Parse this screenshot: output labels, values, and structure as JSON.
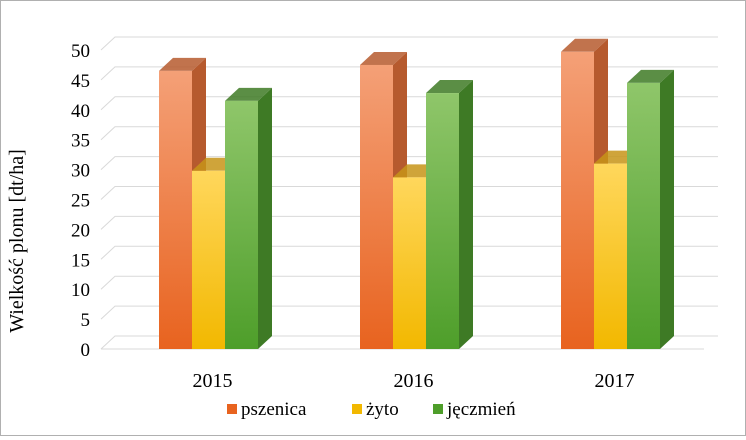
{
  "chart_data": {
    "type": "bar",
    "style": "3d-clustered-column",
    "categories": [
      "2015",
      "2016",
      "2017"
    ],
    "series": [
      {
        "name": "pszenica",
        "values": [
          46.5,
          47.5,
          49.7
        ],
        "color_top": "#F4A077",
        "color_bottom": "#E8631F",
        "color_side": "#B65A2E"
      },
      {
        "name": "żyto",
        "values": [
          29.8,
          28.7,
          31.0
        ],
        "color_top": "#FFD75C",
        "color_bottom": "#F2B800",
        "color_side": "#C79418"
      },
      {
        "name": "jęczmień",
        "values": [
          41.5,
          42.8,
          44.5
        ],
        "color_top": "#8FC66A",
        "color_bottom": "#4E9E2A",
        "color_side": "#3E7A25"
      }
    ],
    "yticks": [
      "0",
      "5",
      "10",
      "15",
      "20",
      "25",
      "30",
      "35",
      "40",
      "45",
      "50"
    ],
    "ylim": [
      0,
      50
    ],
    "ylabel": "Wielkość plonu [dt/ha]",
    "xlabel": "",
    "title": "",
    "grid": true,
    "legend": "bottom"
  }
}
